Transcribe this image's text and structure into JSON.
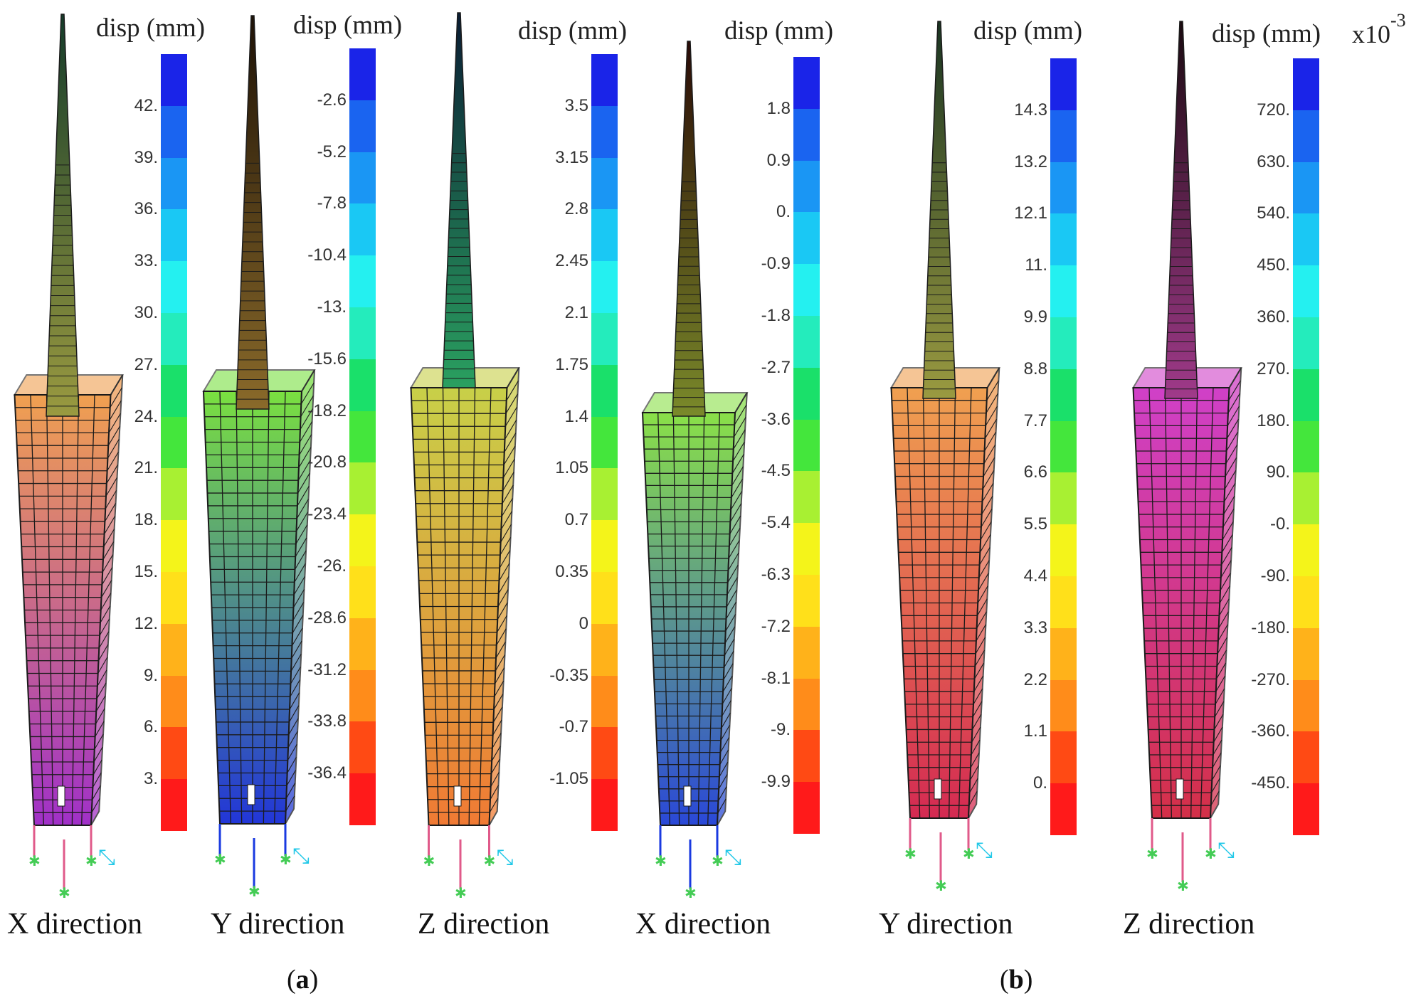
{
  "figure": {
    "subfigure_labels": [
      "a",
      "b"
    ],
    "colors": {
      "scale": [
        "#cc33dd",
        "#e8248f",
        "#ff1a1a",
        "#ff4a14",
        "#ff8c1a",
        "#ffb21a",
        "#ffe01a",
        "#f4f41a",
        "#a8f032",
        "#44e63c",
        "#1ae06a",
        "#24ecbc",
        "#24f0f0",
        "#1ac8f4",
        "#1a96f4",
        "#1a64f0",
        "#1a24e8"
      ],
      "support_green": "#44cc55",
      "support_cyan": "#22c8e8",
      "grid_line": "#1b1b1b"
    },
    "panels": [
      {
        "id": "a-x",
        "legend_title": "disp (mm)",
        "multiplier": "",
        "ticks": [
          "3.",
          "6.",
          "9.",
          "12.",
          "15.",
          "18.",
          "21.",
          "24.",
          "27.",
          "30.",
          "33.",
          "36.",
          "39.",
          "42."
        ],
        "direction_label": "X direction",
        "tower_colors": {
          "body_top": "#f0a050",
          "body_bottom": "#a030c8",
          "spire_top": "#153c2a",
          "spire_bottom": "#9a9a40"
        }
      },
      {
        "id": "a-y",
        "legend_title": "disp (mm)",
        "multiplier": "",
        "ticks": [
          "-36.4",
          "-33.8",
          "-31.2",
          "-28.6",
          "-26.",
          "-23.4",
          "-20.8",
          "-18.2",
          "-15.6",
          "-13.",
          "-10.4",
          "-7.8",
          "-5.2",
          "-2.6"
        ],
        "direction_label": "Y direction",
        "tower_colors": {
          "body_top": "#7ae040",
          "body_bottom": "#2236d8",
          "spire_top": "#1e1206",
          "spire_bottom": "#8a6a2a"
        }
      },
      {
        "id": "a-z",
        "legend_title": "disp (mm)",
        "multiplier": "",
        "ticks": [
          "-1.05",
          "-0.7",
          "-0.35",
          "0",
          "0.35",
          "0.7",
          "1.05",
          "1.4",
          "1.75",
          "2.1",
          "2.45",
          "2.8",
          "3.15",
          "3.5"
        ],
        "direction_label": "Z direction",
        "tower_colors": {
          "body_top": "#c8d048",
          "body_bottom": "#f07a34",
          "spire_top": "#0a1c34",
          "spire_bottom": "#2aa060"
        }
      },
      {
        "id": "b-x",
        "legend_title": "disp (mm)",
        "multiplier": "",
        "ticks": [
          "-9.9",
          "-9.",
          "-8.1",
          "-7.2",
          "-6.3",
          "-5.4",
          "-4.5",
          "-3.6",
          "-2.7",
          "-1.8",
          "-0.9",
          "0.",
          "0.9",
          "1.8"
        ],
        "direction_label": "X direction",
        "tower_colors": {
          "body_top": "#8ae048",
          "body_bottom": "#2a48d8",
          "spire_top": "#2a0a06",
          "spire_bottom": "#7a8a2a"
        }
      },
      {
        "id": "b-y",
        "legend_title": "disp (mm)",
        "multiplier": "",
        "ticks": [
          "0.",
          "1.1",
          "2.2",
          "3.3",
          "4.4",
          "5.5",
          "6.6",
          "7.7",
          "8.8",
          "9.9",
          "11.",
          "12.1",
          "13.2",
          "14.3"
        ],
        "direction_label": "Y direction",
        "tower_colors": {
          "body_top": "#f0a050",
          "body_bottom": "#d42a52",
          "spire_top": "#1a3422",
          "spire_bottom": "#9a9a40"
        }
      },
      {
        "id": "b-z",
        "legend_title": "disp (mm)",
        "multiplier": "x10",
        "multiplier_exponent": "-3",
        "ticks": [
          "-450.",
          "-360.",
          "-270.",
          "-180.",
          "-90.",
          "-0.",
          "90.",
          "180.",
          "270.",
          "360.",
          "450.",
          "540.",
          "630.",
          "720."
        ],
        "direction_label": "Z direction",
        "tower_colors": {
          "body_top": "#d040c8",
          "body_bottom": "#d43048",
          "spire_top": "#1a0a10",
          "spire_bottom": "#a03a8a"
        }
      }
    ]
  }
}
